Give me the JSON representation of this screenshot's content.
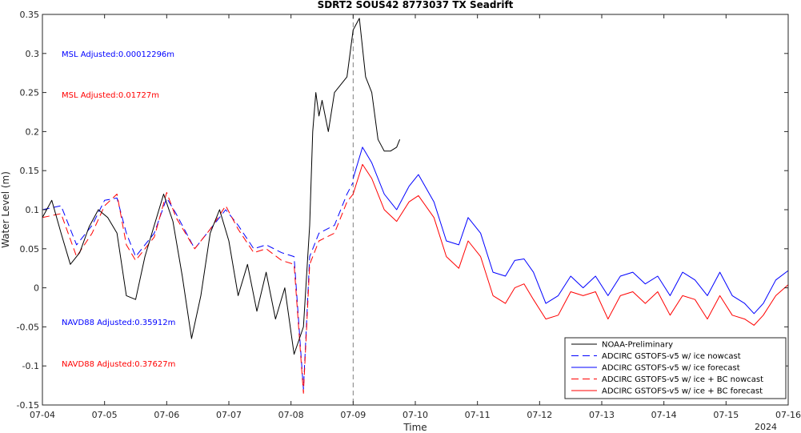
{
  "chart_data": {
    "type": "line",
    "title": "SDRT2 SOUS42 8773037 TX Seadrift",
    "xlabel": "Time",
    "ylabel": "Water Level (m)",
    "year_label": "2024",
    "x_tick_labels": [
      "07-04",
      "07-05",
      "07-06",
      "07-07",
      "07-08",
      "07-09",
      "07-10",
      "07-11",
      "07-12",
      "07-13",
      "07-14",
      "07-15",
      "07-16"
    ],
    "y_ticks": [
      -0.15,
      -0.1,
      -0.05,
      0,
      0.05,
      0.1,
      0.15,
      0.2,
      0.25,
      0.3,
      0.35
    ],
    "y_tick_labels": [
      "-0.15",
      "-0.1",
      "-0.05",
      "0",
      "0.05",
      "0.1",
      "0.15",
      "0.2",
      "0.25",
      "0.3",
      "0.35"
    ],
    "xlim_days": [
      0,
      12
    ],
    "ylim": [
      -0.15,
      0.35
    ],
    "grid": false,
    "legend_position": "bottom-right",
    "nowcast_forecast_divider_x": 5,
    "annotations": [
      {
        "text": "MSL Adjusted:0.00012296m",
        "color": "#0000ff"
      },
      {
        "text": "MSL Adjusted:0.01727m",
        "color": "#ff0000"
      },
      {
        "text": "NAVD88 Adjusted:0.35912m",
        "color": "#0000ff"
      },
      {
        "text": "NAVD88 Adjusted:0.37627m",
        "color": "#ff0000"
      }
    ],
    "series": [
      {
        "name": "NOAA-Preliminary",
        "color": "#000000",
        "dash": "solid",
        "x": [
          0,
          0.15,
          0.3,
          0.45,
          0.6,
          0.75,
          0.9,
          1.05,
          1.2,
          1.35,
          1.5,
          1.65,
          1.8,
          1.95,
          2.1,
          2.25,
          2.4,
          2.55,
          2.7,
          2.85,
          3.0,
          3.15,
          3.3,
          3.45,
          3.6,
          3.75,
          3.9,
          4.05,
          4.2,
          4.3,
          4.35,
          4.4,
          4.45,
          4.5,
          4.6,
          4.7,
          4.8,
          4.9,
          5.0,
          5.1,
          5.2,
          5.3,
          5.4,
          5.5,
          5.6,
          5.7,
          5.75
        ],
        "y": [
          0.09,
          0.112,
          0.07,
          0.03,
          0.045,
          0.078,
          0.1,
          0.09,
          0.07,
          -0.01,
          -0.015,
          0.04,
          0.08,
          0.12,
          0.085,
          0.015,
          -0.065,
          -0.01,
          0.07,
          0.1,
          0.06,
          -0.01,
          0.03,
          -0.03,
          0.02,
          -0.04,
          0.0,
          -0.085,
          -0.05,
          0.08,
          0.2,
          0.25,
          0.22,
          0.24,
          0.2,
          0.25,
          0.26,
          0.27,
          0.33,
          0.345,
          0.27,
          0.25,
          0.19,
          0.175,
          0.175,
          0.18,
          0.19
        ]
      },
      {
        "name": "ADCIRC GSTOFS-v5 w/ ice nowcast",
        "color": "#0000ff",
        "dash": "dashed",
        "x": [
          0,
          0.3,
          0.55,
          0.8,
          1.0,
          1.2,
          1.35,
          1.5,
          1.8,
          2.0,
          2.15,
          2.45,
          2.7,
          2.95,
          3.15,
          3.4,
          3.6,
          3.85,
          4.05,
          4.2,
          4.3,
          4.45,
          4.7,
          4.9,
          5.0
        ],
        "y": [
          0.1,
          0.105,
          0.055,
          0.08,
          0.112,
          0.115,
          0.07,
          0.04,
          0.07,
          0.115,
          0.095,
          0.05,
          0.075,
          0.1,
          0.08,
          0.05,
          0.055,
          0.045,
          0.04,
          -0.13,
          0.04,
          0.07,
          0.08,
          0.12,
          0.135
        ]
      },
      {
        "name": "ADCIRC GSTOFS-v5 w/ ice forecast",
        "color": "#0000ff",
        "dash": "solid",
        "x": [
          5.0,
          5.15,
          5.3,
          5.5,
          5.7,
          5.9,
          6.05,
          6.3,
          6.5,
          6.7,
          6.85,
          7.05,
          7.25,
          7.45,
          7.6,
          7.75,
          7.9,
          8.1,
          8.3,
          8.5,
          8.7,
          8.9,
          9.1,
          9.3,
          9.5,
          9.7,
          9.9,
          10.1,
          10.3,
          10.5,
          10.7,
          10.9,
          11.1,
          11.3,
          11.45,
          11.6,
          11.8,
          12.0
        ],
        "y": [
          0.14,
          0.18,
          0.16,
          0.12,
          0.1,
          0.13,
          0.145,
          0.11,
          0.06,
          0.055,
          0.09,
          0.07,
          0.02,
          0.015,
          0.035,
          0.037,
          0.02,
          -0.02,
          -0.01,
          0.015,
          0.0,
          0.015,
          -0.01,
          0.015,
          0.02,
          0.005,
          0.015,
          -0.01,
          0.02,
          0.01,
          -0.01,
          0.02,
          -0.01,
          -0.02,
          -0.033,
          -0.02,
          0.01,
          0.022
        ]
      },
      {
        "name": "ADCIRC GSTOFS-v5 w/ ice + BC nowcast",
        "color": "#ff0000",
        "dash": "dashed",
        "x": [
          0,
          0.3,
          0.55,
          0.8,
          1.0,
          1.2,
          1.35,
          1.5,
          1.8,
          2.0,
          2.15,
          2.45,
          2.7,
          2.95,
          3.15,
          3.4,
          3.6,
          3.85,
          4.05,
          4.2,
          4.3,
          4.45,
          4.7,
          4.9,
          5.0
        ],
        "y": [
          0.09,
          0.095,
          0.04,
          0.07,
          0.105,
          0.12,
          0.055,
          0.035,
          0.065,
          0.122,
          0.09,
          0.05,
          0.075,
          0.105,
          0.075,
          0.045,
          0.05,
          0.035,
          0.03,
          -0.135,
          0.03,
          0.06,
          0.07,
          0.11,
          0.12
        ]
      },
      {
        "name": "ADCIRC GSTOFS-v5 w/ ice + BC forecast",
        "color": "#ff0000",
        "dash": "solid",
        "x": [
          5.0,
          5.15,
          5.3,
          5.5,
          5.7,
          5.9,
          6.05,
          6.3,
          6.5,
          6.7,
          6.85,
          7.05,
          7.25,
          7.45,
          7.6,
          7.75,
          7.9,
          8.1,
          8.3,
          8.5,
          8.7,
          8.9,
          9.1,
          9.3,
          9.5,
          9.7,
          9.9,
          10.1,
          10.3,
          10.5,
          10.7,
          10.9,
          11.1,
          11.3,
          11.45,
          11.6,
          11.8,
          12.0
        ],
        "y": [
          0.12,
          0.158,
          0.14,
          0.1,
          0.085,
          0.11,
          0.118,
          0.09,
          0.04,
          0.025,
          0.06,
          0.04,
          -0.01,
          -0.02,
          0.0,
          0.005,
          -0.015,
          -0.04,
          -0.035,
          -0.005,
          -0.01,
          -0.005,
          -0.04,
          -0.01,
          -0.005,
          -0.02,
          -0.005,
          -0.035,
          -0.01,
          -0.015,
          -0.04,
          -0.01,
          -0.035,
          -0.04,
          -0.048,
          -0.035,
          -0.01,
          0.004
        ]
      }
    ]
  }
}
